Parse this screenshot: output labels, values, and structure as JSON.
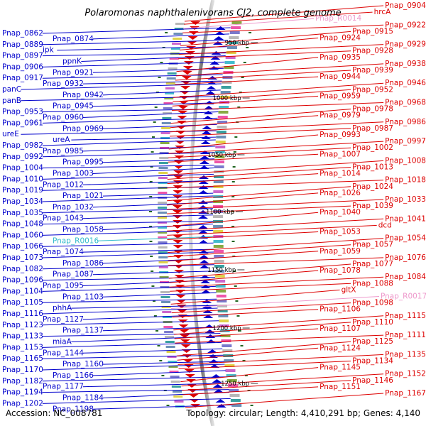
{
  "title": "Polaromonas naphthalenivorans CJ2, complete genome",
  "footer": {
    "accession": "Accession: NC_008781",
    "summary": "Topology: circular; Length: 4,410,291 bp; Genes: 4,140"
  },
  "scale_ticks": [
    "950 kbp",
    "1000 kbp",
    "1050 kbp",
    "1100 kbp",
    "1150 kbp",
    "1200 kbp",
    "1250 kbp"
  ],
  "colors": {
    "forward_strand": "#0000cc",
    "reverse_strand": "#dd0000",
    "rna_forward": "#33bbcc",
    "rna_reverse": "#ee99cc",
    "backbone": "#888888",
    "tick_mark": "#226622"
  },
  "left_labels": [
    "Pnap_0862",
    "Pnap_0874",
    "Pnap_0889",
    "ipk",
    "Pnap_0897",
    "ppnK",
    "Pnap_0906",
    "Pnap_0921",
    "Pnap_0917",
    "Pnap_0932",
    "panC",
    "Pnap_0942",
    "panB",
    "Pnap_0945",
    "Pnap_0953",
    "Pnap_0960",
    "Pnap_0961",
    "Pnap_0969",
    "ureE",
    "ureA",
    "Pnap_0982",
    "Pnap_0985",
    "Pnap_0992",
    "Pnap_0995",
    "Pnap_1004",
    "Pnap_1003",
    "Pnap_1010",
    "Pnap_1012",
    "Pnap_1019",
    "Pnap_1021",
    "Pnap_1034",
    "Pnap_1032",
    "Pnap_1035",
    "Pnap_1043",
    "Pnap_1048",
    "Pnap_1058",
    "Pnap_1060",
    "Pnap_R0016",
    "Pnap_1066",
    "Pnap_1074",
    "Pnap_1073",
    "Pnap_1086",
    "Pnap_1082",
    "Pnap_1087",
    "Pnap_1096",
    "Pnap_1095",
    "Pnap_1104",
    "Pnap_1103",
    "Pnap_1105",
    "phhA",
    "Pnap_1116",
    "Pnap_1127",
    "Pnap_1123",
    "Pnap_1137",
    "Pnap_1133",
    "miaA",
    "Pnap_1153",
    "Pnap_1144",
    "Pnap_1165",
    "Pnap_1160",
    "Pnap_1170",
    "Pnap_1166",
    "Pnap_1182",
    "Pnap_1177",
    "Pnap_1194",
    "Pnap_1184",
    "Pnap_1202",
    "Pnap_1198"
  ],
  "right_labels": [
    "Pnap_0904",
    "hrcA",
    "Pnap_R0014",
    "Pnap_0922",
    "Pnap_0915",
    "Pnap_0924",
    "Pnap_0929",
    "Pnap_0928",
    "Pnap_0935",
    "Pnap_0938",
    "Pnap_0939",
    "Pnap_0944",
    "Pnap_0946",
    "Pnap_0952",
    "Pnap_0959",
    "Pnap_0968",
    "Pnap_0978",
    "Pnap_0979",
    "Pnap_0986",
    "Pnap_0987",
    "Pnap_0993",
    "Pnap_0997",
    "Pnap_1002",
    "Pnap_1007",
    "Pnap_1008",
    "Pnap_1013",
    "Pnap_1014",
    "Pnap_1018",
    "Pnap_1024",
    "Pnap_1026",
    "Pnap_1033",
    "Pnap_1039",
    "Pnap_1040",
    "Pnap_1041",
    "dcd",
    "Pnap_1053",
    "Pnap_1054",
    "Pnap_1057",
    "Pnap_1059",
    "Pnap_1076",
    "Pnap_1077",
    "Pnap_1078",
    "Pnap_1084",
    "Pnap_1088",
    "gltX",
    "Pnap_R0017",
    "Pnap_1098",
    "Pnap_1106",
    "Pnap_1115",
    "Pnap_1110",
    "Pnap_1107",
    "Pnap_1111",
    "Pnap_1125",
    "Pnap_1124",
    "Pnap_1135",
    "Pnap_1134",
    "Pnap_1145",
    "Pnap_1152",
    "Pnap_1146",
    "Pnap_1151",
    "Pnap_1167"
  ]
}
